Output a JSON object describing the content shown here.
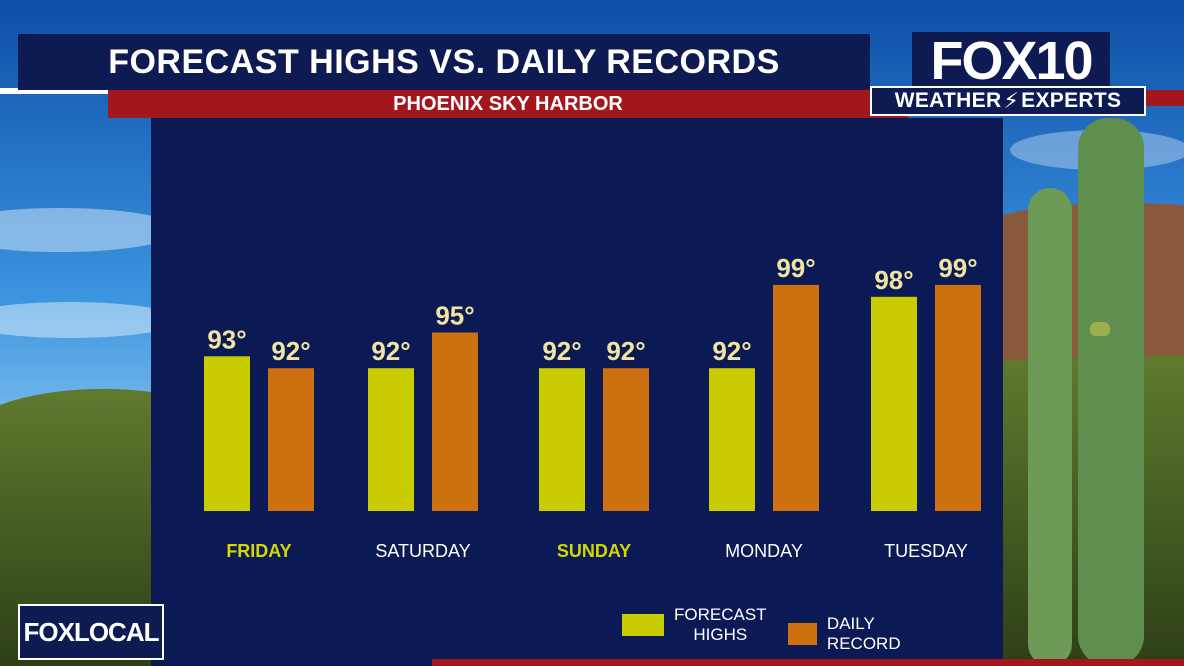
{
  "header": {
    "title": "FORECAST HIGHS VS. DAILY RECORDS",
    "subtitle": "PHOENIX SKY HARBOR"
  },
  "branding": {
    "station_logo": "FOX10",
    "weather_label_left": "WEATHER",
    "weather_label_right": "EXPERTS",
    "local_bug": "FOXLOCAL"
  },
  "colors": {
    "forecast": "#c9cc00",
    "record": "#cc7010",
    "day_label_highlight": "#d4d800",
    "day_label_normal": "#ffffff",
    "value_label": "#f1e4a0",
    "panel": "#0b1a55"
  },
  "chart_data": {
    "type": "bar",
    "title": "FORECAST HIGHS VS. DAILY RECORDS",
    "subtitle": "PHOENIX SKY HARBOR",
    "categories": [
      "FRIDAY",
      "SATURDAY",
      "SUNDAY",
      "MONDAY",
      "TUESDAY"
    ],
    "category_highlight": [
      true,
      false,
      true,
      false,
      false
    ],
    "series": [
      {
        "name": "FORECAST HIGHS",
        "values": [
          93,
          92,
          92,
          92,
          98
        ],
        "labels": [
          "93°",
          "92°",
          "92°",
          "92°",
          "98°"
        ]
      },
      {
        "name": "DAILY RECORD",
        "values": [
          92,
          95,
          92,
          99,
          99
        ],
        "labels": [
          "92°",
          "95°",
          "92°",
          "99°",
          "99°"
        ]
      }
    ],
    "legend": {
      "position": "bottom-right",
      "forecast_line1": "FORECAST",
      "forecast_line2": "HIGHS",
      "record_label": "DAILY RECORD"
    },
    "grid": false
  }
}
